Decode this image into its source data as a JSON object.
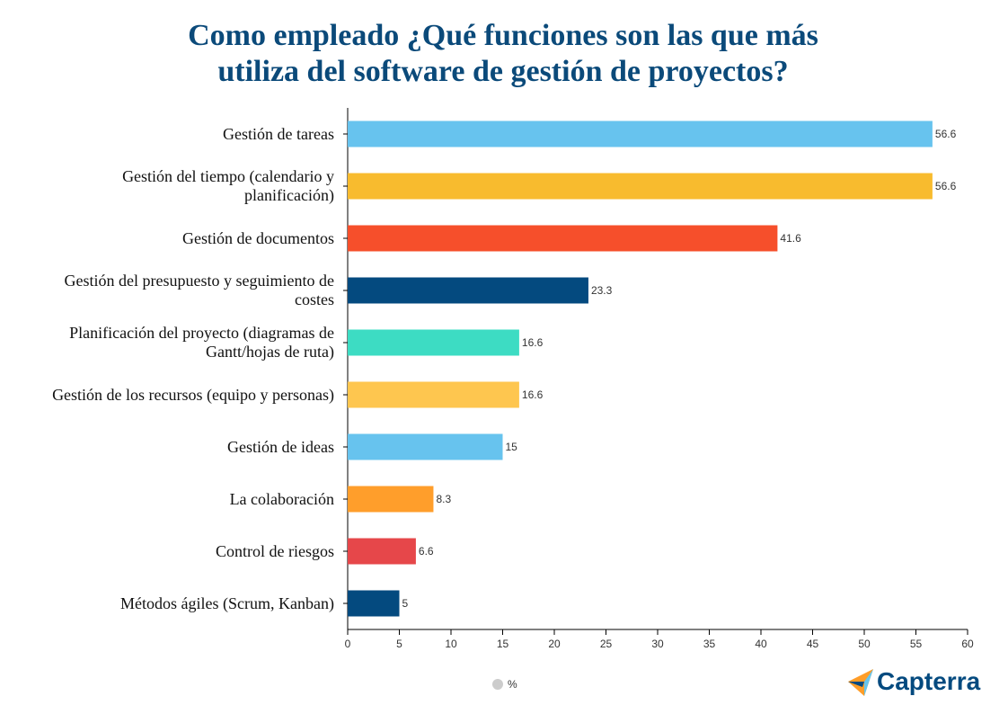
{
  "chart_data": {
    "type": "bar",
    "orientation": "horizontal",
    "title": "Como empleado ¿Qué funciones son las que más utiliza del software de gestión de proyectos?",
    "categories": [
      "Gestión de tareas",
      "Gestión del tiempo (calendario y planificación)",
      "Gestión de documentos",
      "Gestión del presupuesto y seguimiento de costes",
      "Planificación del proyecto (diagramas de Gantt/hojas de ruta)",
      "Gestión de los recursos (equipo y personas)",
      "Gestión de ideas",
      "La colaboración",
      "Control de riesgos",
      "Métodos ágiles (Scrum, Kanban)"
    ],
    "series": [
      {
        "name": "%",
        "color": "#cccccc",
        "values": [
          56.6,
          56.6,
          41.6,
          23.3,
          16.6,
          16.6,
          15,
          8.3,
          6.6,
          5
        ],
        "bar_colors": [
          "#67c3ee",
          "#f8bb2e",
          "#f64f2b",
          "#044a7f",
          "#3ddcc3",
          "#fec64f",
          "#67c3ee",
          "#ff9e2b",
          "#e6474a",
          "#044a7f"
        ]
      }
    ],
    "xlim": [
      0,
      60
    ],
    "xticks": [
      0,
      5,
      10,
      15,
      20,
      25,
      30,
      35,
      40,
      45,
      50,
      55,
      60
    ],
    "grid": false
  },
  "brand": "Capterra"
}
